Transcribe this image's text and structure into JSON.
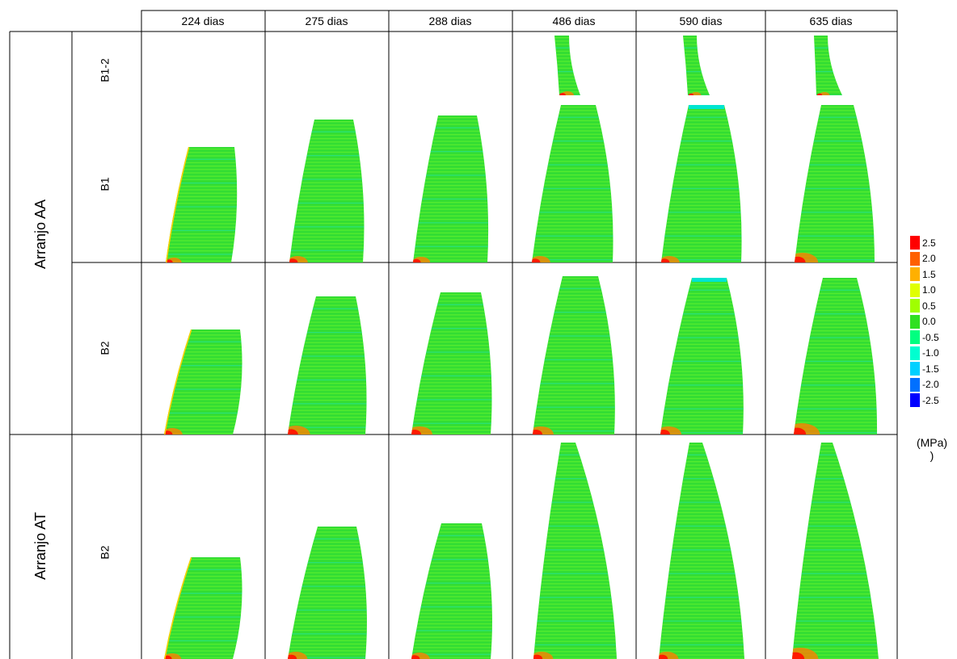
{
  "columns": [
    "224 dias",
    "275 dias",
    "288 dias",
    "486 dias",
    "590 dias",
    "635 dias"
  ],
  "groups": [
    {
      "label": "Arranjo AA",
      "rows": [
        "B1-2",
        "B1",
        "B2"
      ]
    },
    {
      "label": "Arranjo AT",
      "rows": [
        "B2"
      ]
    }
  ],
  "legend": {
    "values": [
      "2.5",
      "2.0",
      "1.5",
      "1.0",
      "0.5",
      "0.0",
      "-0.5",
      "-1.0",
      "-1.5",
      "-2.0",
      "-2.5"
    ],
    "colors": [
      "#ff0000",
      "#ff6000",
      "#ffb000",
      "#e0ff00",
      "#a0ff00",
      "#30e020",
      "#00ff80",
      "#00ffd0",
      "#00d0ff",
      "#0070ff",
      "#0000ff"
    ],
    "unit_line1": "(MPa)",
    "unit_line2": ")"
  },
  "colors": {
    "band_green": "#33dd33",
    "stripe_light": "#7fff2a",
    "stripe_cyan": "#22e6b0",
    "base_red": "#ff1a00",
    "base_orange": "#ff8000",
    "edge_yellow": "#ffd000",
    "top_cyan": "#00e5d0"
  }
}
